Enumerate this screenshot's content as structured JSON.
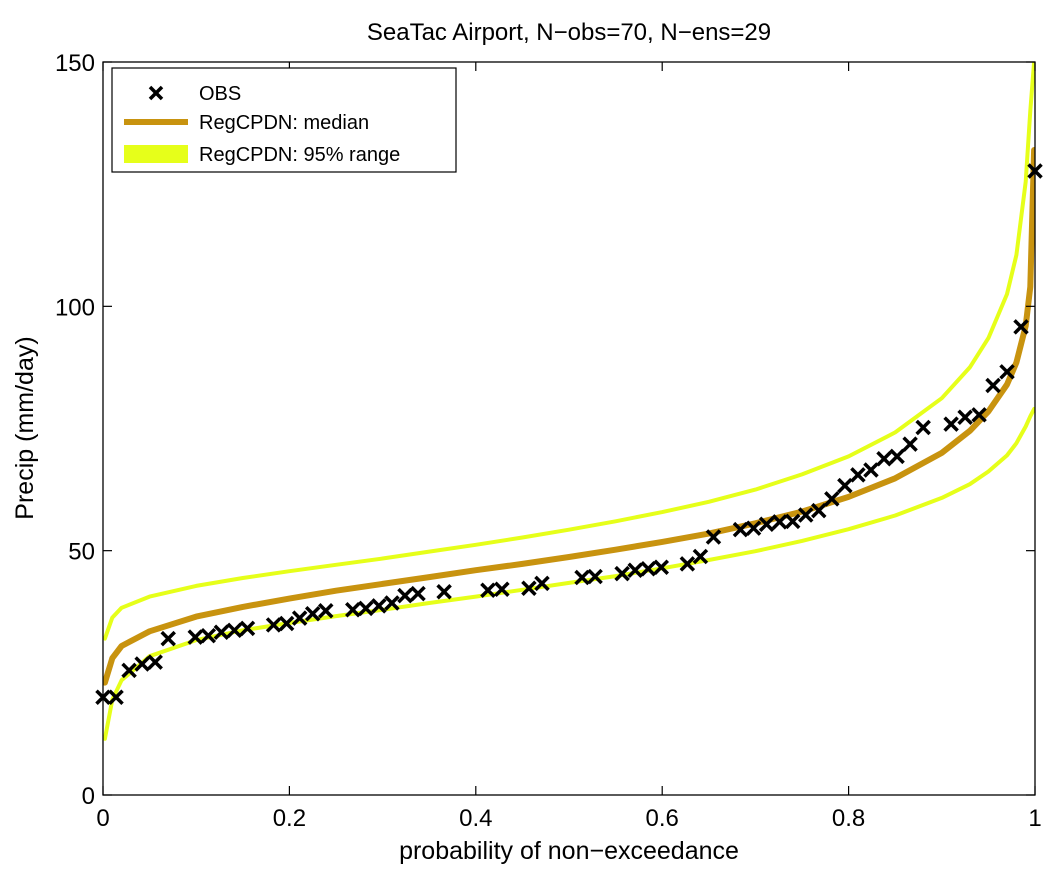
{
  "chart_data": {
    "type": "line",
    "title": "SeaTac Airport, N−obs=70, N−ens=29",
    "xlabel": "probability of non−exceedance",
    "ylabel": "Precip (mm/day)",
    "xlim": [
      0,
      1
    ],
    "ylim": [
      0,
      150
    ],
    "xticks": [
      0,
      0.2,
      0.4,
      0.6,
      0.8,
      1
    ],
    "xtick_labels": [
      "0",
      "0.2",
      "0.4",
      "0.6",
      "0.8",
      "1"
    ],
    "yticks": [
      0,
      50,
      100,
      150
    ],
    "ytick_labels": [
      "0",
      "50",
      "100",
      "150"
    ],
    "grid": false,
    "legend_position": "top-left",
    "legend": [
      {
        "label": "OBS",
        "style": "marker-x",
        "color": "#000000"
      },
      {
        "label": "RegCPDN: median",
        "style": "line",
        "color": "#C8930F"
      },
      {
        "label": "RegCPDN: 95% range",
        "style": "band",
        "color": "#E6FF1A"
      }
    ],
    "series": [
      {
        "name": "RegCPDN: median",
        "color": "#C8930F",
        "x": [
          0.002,
          0.01,
          0.02,
          0.05,
          0.1,
          0.15,
          0.2,
          0.25,
          0.3,
          0.35,
          0.4,
          0.45,
          0.5,
          0.55,
          0.6,
          0.65,
          0.7,
          0.75,
          0.8,
          0.85,
          0.9,
          0.93,
          0.95,
          0.97,
          0.98,
          0.99,
          0.995,
          0.999
        ],
        "y": [
          23,
          28,
          30.5,
          33.5,
          36.5,
          38.5,
          40.2,
          41.8,
          43.2,
          44.6,
          46,
          47.3,
          48.7,
          50.2,
          51.8,
          53.5,
          55.6,
          58,
          61,
          64.8,
          70,
          74.5,
          78.5,
          84,
          88.5,
          96,
          104,
          132
        ]
      },
      {
        "name": "RegCPDN: 95% range (upper)",
        "color": "#E6FF1A",
        "x": [
          0.002,
          0.01,
          0.02,
          0.05,
          0.1,
          0.15,
          0.2,
          0.25,
          0.3,
          0.35,
          0.4,
          0.45,
          0.5,
          0.55,
          0.6,
          0.65,
          0.7,
          0.75,
          0.8,
          0.85,
          0.9,
          0.93,
          0.95,
          0.97,
          0.98,
          0.99,
          0.995,
          0.999
        ],
        "y": [
          32,
          36.3,
          38.3,
          40.6,
          42.8,
          44.4,
          45.8,
          47.1,
          48.4,
          49.8,
          51.2,
          52.7,
          54.3,
          56,
          57.9,
          60,
          62.5,
          65.6,
          69.3,
          74.2,
          81.2,
          87.5,
          93.5,
          102.5,
          110.5,
          125.5,
          140,
          150
        ]
      },
      {
        "name": "RegCPDN: 95% range (lower)",
        "color": "#E6FF1A",
        "x": [
          0.002,
          0.01,
          0.02,
          0.05,
          0.1,
          0.15,
          0.2,
          0.25,
          0.3,
          0.35,
          0.4,
          0.45,
          0.5,
          0.55,
          0.6,
          0.65,
          0.7,
          0.75,
          0.8,
          0.85,
          0.9,
          0.93,
          0.95,
          0.97,
          0.98,
          0.99,
          0.995,
          0.999
        ],
        "y": [
          11.5,
          19.5,
          23.5,
          28.4,
          31.7,
          33.7,
          35.2,
          36.6,
          37.9,
          39.3,
          40.6,
          42,
          43.4,
          44.8,
          46.4,
          48.1,
          49.9,
          52,
          54.4,
          57.2,
          60.8,
          63.6,
          66.2,
          69.5,
          72,
          75.4,
          77.5,
          79
        ]
      },
      {
        "name": "OBS",
        "type": "scatter",
        "marker": "x",
        "color": "#000000",
        "x": [
          0.0,
          0.014,
          0.028,
          0.042,
          0.056,
          0.07,
          0.099,
          0.113,
          0.127,
          0.141,
          0.155,
          0.183,
          0.197,
          0.211,
          0.225,
          0.239,
          0.268,
          0.282,
          0.296,
          0.31,
          0.324,
          0.338,
          0.366,
          0.413,
          0.428,
          0.457,
          0.471,
          0.514,
          0.528,
          0.557,
          0.571,
          0.585,
          0.599,
          0.627,
          0.641,
          0.655,
          0.684,
          0.698,
          0.712,
          0.726,
          0.74,
          0.754,
          0.768,
          0.782,
          0.796,
          0.81,
          0.824,
          0.838,
          0.852,
          0.866,
          0.88,
          0.91,
          0.925,
          0.94,
          0.955,
          0.97,
          0.985,
          1.0
        ],
        "y": [
          20,
          20,
          25.5,
          26.8,
          27.2,
          32,
          32.3,
          32.6,
          33.3,
          33.7,
          34.1,
          34.8,
          35.1,
          36.2,
          37.1,
          37.7,
          37.9,
          38.2,
          38.7,
          39.3,
          40.8,
          41.2,
          41.6,
          41.9,
          42.1,
          42.3,
          43.3,
          44.5,
          44.7,
          45.3,
          46,
          46.3,
          46.6,
          47.3,
          48.8,
          52.8,
          54.3,
          54.6,
          55.4,
          55.9,
          56,
          57.3,
          58.2,
          60.6,
          63.3,
          65.5,
          66.5,
          68.8,
          69.3,
          71.8,
          75.2,
          75.9,
          77.3,
          77.8,
          83.8,
          86.6,
          95.8,
          127.7
        ]
      }
    ]
  }
}
